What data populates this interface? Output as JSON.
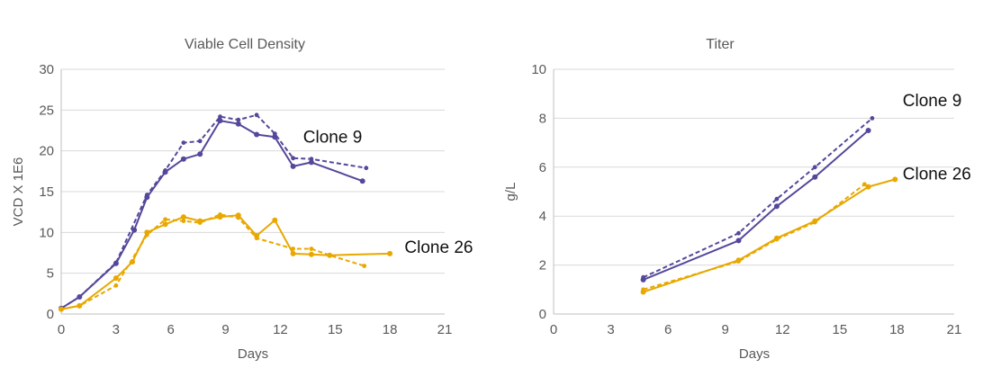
{
  "figure": {
    "background": "#ffffff"
  },
  "colors": {
    "clone9": "#54489b",
    "clone26": "#e8a800",
    "grid": "#d9d9d9",
    "axis": "#bfbfbf",
    "tick_text": "#595959",
    "title_text": "#595959",
    "annotation_text": "#111111"
  },
  "chart_data": [
    {
      "type": "line",
      "title": "Viable Cell Density",
      "xlabel": "Days",
      "ylabel": "VCD X 1E6",
      "xlim": [
        0,
        21
      ],
      "ylim": [
        0,
        30
      ],
      "xticks": [
        0,
        3,
        6,
        9,
        12,
        15,
        18,
        21
      ],
      "yticks": [
        0,
        5,
        10,
        15,
        20,
        25,
        30
      ],
      "grid": "horizontal",
      "legend": "none",
      "annotations": [
        {
          "text": "Clone 9",
          "x": 13.25,
          "y": 21.0
        },
        {
          "text": "Clone 26",
          "x": 18.8,
          "y": 7.5
        }
      ],
      "series": [
        {
          "name": "Clone 9 solid",
          "color": "#54489b",
          "dash": false,
          "points": [
            [
              0,
              0.7
            ],
            [
              1,
              2.1
            ],
            [
              3,
              6.2
            ],
            [
              4,
              10.3
            ],
            [
              4.7,
              14.3
            ],
            [
              5.7,
              17.4
            ],
            [
              6.7,
              19.0
            ],
            [
              7.6,
              19.6
            ],
            [
              8.7,
              23.7
            ],
            [
              9.7,
              23.3
            ],
            [
              10.7,
              22.0
            ],
            [
              11.7,
              21.7
            ],
            [
              12.7,
              18.1
            ],
            [
              13.7,
              18.6
            ],
            [
              16.5,
              16.3
            ]
          ]
        },
        {
          "name": "Clone 9 dashed",
          "color": "#54489b",
          "dash": true,
          "points": [
            [
              0,
              0.7
            ],
            [
              1,
              2.1
            ],
            [
              3,
              6.3
            ],
            [
              4.7,
              14.6
            ],
            [
              5.7,
              17.6
            ],
            [
              6.7,
              21.0
            ],
            [
              7.6,
              21.2
            ],
            [
              8.7,
              24.2
            ],
            [
              9.7,
              23.8
            ],
            [
              10.7,
              24.4
            ],
            [
              11.7,
              22.1
            ],
            [
              12.7,
              19.1
            ],
            [
              13.7,
              19.0
            ],
            [
              16.7,
              17.9
            ]
          ]
        },
        {
          "name": "Clone 26 solid",
          "color": "#e8a800",
          "dash": false,
          "points": [
            [
              0,
              0.6
            ],
            [
              1,
              1.0
            ],
            [
              3,
              4.4
            ],
            [
              3.9,
              6.4
            ],
            [
              4.7,
              10.0
            ],
            [
              5.7,
              11.0
            ],
            [
              6.7,
              11.9
            ],
            [
              7.6,
              11.4
            ],
            [
              8.7,
              11.9
            ],
            [
              9.7,
              12.1
            ],
            [
              10.7,
              9.6
            ],
            [
              11.7,
              11.5
            ],
            [
              12.7,
              7.4
            ],
            [
              13.7,
              7.3
            ],
            [
              14.7,
              7.2
            ],
            [
              18,
              7.4
            ]
          ]
        },
        {
          "name": "Clone 26 dashed",
          "color": "#e8a800",
          "dash": true,
          "points": [
            [
              0,
              0.6
            ],
            [
              1,
              1.0
            ],
            [
              3,
              3.5
            ],
            [
              4.7,
              9.7
            ],
            [
              5.7,
              11.6
            ],
            [
              6.7,
              11.4
            ],
            [
              7.6,
              11.2
            ],
            [
              8.7,
              12.2
            ],
            [
              9.7,
              11.8
            ],
            [
              10.7,
              9.3
            ],
            [
              12.7,
              8.0
            ],
            [
              13.7,
              8.0
            ],
            [
              14.7,
              7.2
            ],
            [
              16.6,
              5.9
            ]
          ]
        }
      ]
    },
    {
      "type": "line",
      "title": "Titer",
      "xlabel": "Days",
      "ylabel": "g/L",
      "xlim": [
        0,
        21
      ],
      "ylim": [
        0,
        10
      ],
      "xticks": [
        0,
        3,
        6,
        9,
        12,
        15,
        18,
        21
      ],
      "yticks": [
        0,
        2,
        4,
        6,
        8,
        10
      ],
      "grid": "horizontal",
      "legend": "none",
      "annotations": [
        {
          "text": "Clone 9",
          "x": 18.3,
          "y": 8.5
        },
        {
          "text": "Clone 26",
          "x": 18.3,
          "y": 5.5
        }
      ],
      "series": [
        {
          "name": "Clone 9 solid",
          "color": "#54489b",
          "dash": false,
          "points": [
            [
              4.7,
              1.4
            ],
            [
              9.7,
              3.0
            ],
            [
              11.7,
              4.4
            ],
            [
              13.7,
              5.6
            ],
            [
              16.5,
              7.5
            ]
          ]
        },
        {
          "name": "Clone 9 dashed",
          "color": "#54489b",
          "dash": true,
          "points": [
            [
              4.7,
              1.5
            ],
            [
              9.7,
              3.3
            ],
            [
              11.7,
              4.7
            ],
            [
              13.7,
              6.0
            ],
            [
              16.7,
              8.0
            ]
          ]
        },
        {
          "name": "Clone 26 solid",
          "color": "#e8a800",
          "dash": false,
          "points": [
            [
              4.7,
              0.9
            ],
            [
              9.7,
              2.2
            ],
            [
              11.7,
              3.1
            ],
            [
              13.7,
              3.8
            ],
            [
              16.5,
              5.2
            ],
            [
              17.9,
              5.5
            ]
          ]
        },
        {
          "name": "Clone 26 dashed",
          "color": "#e8a800",
          "dash": true,
          "points": [
            [
              4.7,
              1.0
            ],
            [
              9.7,
              2.15
            ],
            [
              11.7,
              3.05
            ],
            [
              13.7,
              3.75
            ],
            [
              16.3,
              5.3
            ]
          ]
        }
      ]
    }
  ]
}
